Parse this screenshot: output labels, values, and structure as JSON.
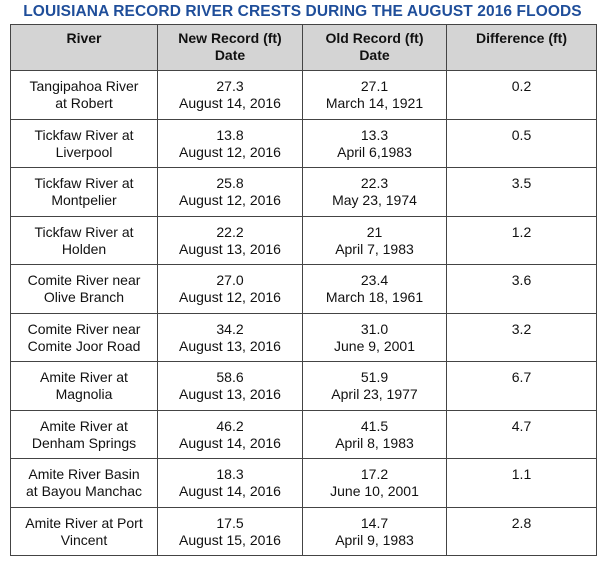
{
  "title": "LOUISIANA RECORD RIVER CRESTS DURING THE AUGUST 2016 FLOODS",
  "headers": {
    "river": "River",
    "new_record_line1": "New Record (ft)",
    "new_record_line2": "Date",
    "old_record_line1": "Old Record (ft)",
    "old_record_line2": "Date",
    "difference": "Difference (ft)"
  },
  "rows": [
    {
      "river_line1": "Tangipahoa River",
      "river_line2": "at Robert",
      "new_ft": "27.3",
      "new_date": "August 14, 2016",
      "old_ft": "27.1",
      "old_date": "March 14, 1921",
      "difference": "0.2"
    },
    {
      "river_line1": "Tickfaw River at",
      "river_line2": "Liverpool",
      "new_ft": "13.8",
      "new_date": "August 12, 2016",
      "old_ft": "13.3",
      "old_date": "April 6,1983",
      "difference": "0.5"
    },
    {
      "river_line1": "Tickfaw River at",
      "river_line2": "Montpelier",
      "new_ft": "25.8",
      "new_date": "August 12, 2016",
      "old_ft": "22.3",
      "old_date": "May 23, 1974",
      "difference": "3.5"
    },
    {
      "river_line1": "Tickfaw River at",
      "river_line2": "Holden",
      "new_ft": "22.2",
      "new_date": "August 13, 2016",
      "old_ft": "21",
      "old_date": "April 7, 1983",
      "difference": "1.2"
    },
    {
      "river_line1": "Comite River near",
      "river_line2": "Olive Branch",
      "new_ft": "27.0",
      "new_date": "August 12, 2016",
      "old_ft": "23.4",
      "old_date": "March 18, 1961",
      "difference": "3.6"
    },
    {
      "river_line1": "Comite River near",
      "river_line2": "Comite Joor Road",
      "new_ft": "34.2",
      "new_date": "August 13, 2016",
      "old_ft": "31.0",
      "old_date": "June 9, 2001",
      "difference": "3.2"
    },
    {
      "river_line1": "Amite River at",
      "river_line2": "Magnolia",
      "new_ft": "58.6",
      "new_date": "August 13, 2016",
      "old_ft": "51.9",
      "old_date": "April 23, 1977",
      "difference": "6.7"
    },
    {
      "river_line1": "Amite River at",
      "river_line2": "Denham Springs",
      "new_ft": "46.2",
      "new_date": "August 14, 2016",
      "old_ft": "41.5",
      "old_date": "April 8, 1983",
      "difference": "4.7"
    },
    {
      "river_line1": "Amite River Basin",
      "river_line2": "at Bayou Manchac",
      "new_ft": "18.3",
      "new_date": "August 14, 2016",
      "old_ft": "17.2",
      "old_date": "June 10, 2001",
      "difference": "1.1"
    },
    {
      "river_line1": "Amite River at Port",
      "river_line2": "Vincent",
      "new_ft": "17.5",
      "new_date": "August 15, 2016",
      "old_ft": "14.7",
      "old_date": "April 9, 1983",
      "difference": "2.8"
    }
  ]
}
